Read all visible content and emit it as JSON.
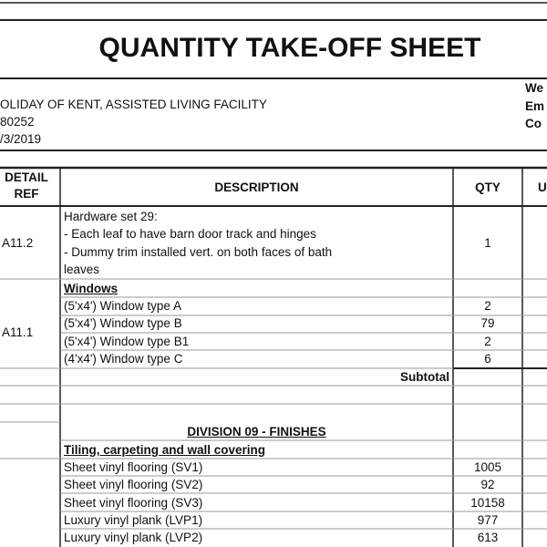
{
  "header": {
    "title": "QUANTITY TAKE-OFF SHEET",
    "project": "OLIDAY OF KENT, ASSISTED LIVING FACILITY",
    "number": "80252",
    "date": "/3/2019",
    "side_labels": [
      "We",
      "Em",
      "Co"
    ]
  },
  "table": {
    "columns": [
      "DETAIL REF",
      "DESCRIPTION",
      "QTY",
      "U"
    ],
    "hardware": {
      "ref": "A11.2",
      "lines": [
        "Hardware set 29:",
        "- Each leaf to have barn door track and hinges",
        "- Dummy trim installed vert. on both faces of bath",
        "leaves"
      ],
      "qty": "1"
    },
    "windows": {
      "heading": "Windows",
      "ref": "A11.1",
      "items": [
        {
          "description": "(5'x4') Window type A",
          "qty": "2"
        },
        {
          "description": "(5'x4') Window type B",
          "qty": "79"
        },
        {
          "description": "(5'x4') Window type B1",
          "qty": "2"
        },
        {
          "description": "(4'x4') Window type C",
          "qty": "6"
        }
      ]
    },
    "subtotal": "Subtotal",
    "division": "DIVISION 09 - FINISHES",
    "finishes": {
      "heading": "Tiling, carpeting and wall covering",
      "items": [
        {
          "description": "Sheet vinyl flooring (SV1)",
          "qty": "1005"
        },
        {
          "description": "Sheet vinyl flooring (SV2)",
          "qty": "92"
        },
        {
          "description": "Sheet vinyl flooring (SV3)",
          "qty": "10158"
        },
        {
          "description": "Luxury vinyl plank (LVP1)",
          "qty": "977"
        },
        {
          "description": "Luxury vinyl plank (LVP2)",
          "qty": "613"
        }
      ]
    }
  }
}
